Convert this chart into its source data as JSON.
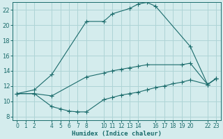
{
  "bg_color": "#d4eced",
  "grid_color": "#aed4d6",
  "line_color": "#1a6b6b",
  "xlabel": "Humidex (Indice chaleur)",
  "xlim": [
    -0.5,
    23.5
  ],
  "ylim": [
    7.5,
    23.0
  ],
  "xticks": [
    0,
    1,
    2,
    4,
    5,
    6,
    7,
    8,
    10,
    11,
    12,
    13,
    14,
    16,
    17,
    18,
    19,
    20,
    22,
    23
  ],
  "yticks": [
    8,
    10,
    12,
    14,
    16,
    18,
    20,
    22
  ],
  "line1_x": [
    0,
    2,
    4,
    8,
    10,
    11,
    13,
    14,
    15,
    16,
    20,
    22,
    23
  ],
  "line1_y": [
    11,
    11.5,
    13.5,
    20.5,
    20.5,
    21.5,
    22.2,
    22.8,
    23.0,
    22.5,
    17.2,
    12.2,
    13.0
  ],
  "line2_x": [
    0,
    2,
    4,
    8,
    10,
    11,
    12,
    13,
    14,
    15,
    19,
    20,
    22,
    23
  ],
  "line2_y": [
    11,
    11.0,
    10.7,
    13.2,
    13.7,
    14.0,
    14.2,
    14.4,
    14.6,
    14.8,
    14.8,
    15.0,
    12.2,
    13.0
  ],
  "line3_x": [
    0,
    2,
    4,
    5,
    6,
    7,
    8,
    10,
    11,
    12,
    13,
    14,
    15,
    16,
    17,
    18,
    19,
    20,
    22,
    23
  ],
  "line3_y": [
    11,
    11.0,
    9.3,
    9.0,
    8.7,
    8.6,
    8.6,
    10.2,
    10.5,
    10.8,
    11.0,
    11.2,
    11.5,
    11.8,
    12.0,
    12.3,
    12.5,
    12.8,
    12.2,
    13.0
  ]
}
